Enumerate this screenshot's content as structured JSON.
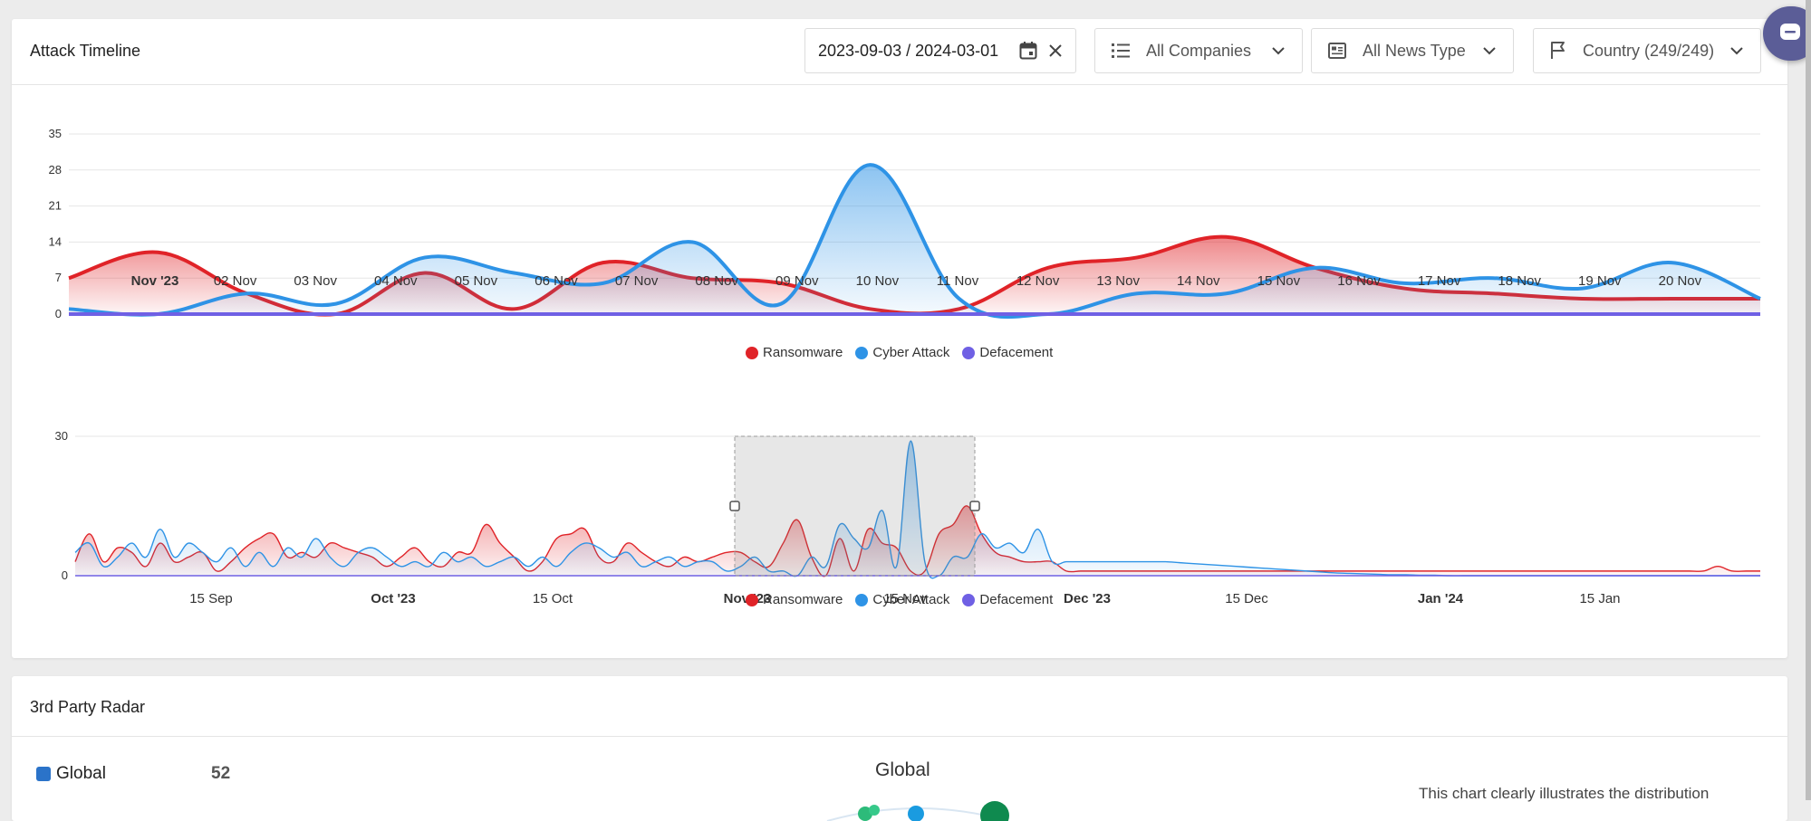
{
  "timeline": {
    "title": "Attack Timeline",
    "filters": {
      "date_range": "2023-09-03 / 2024-03-01",
      "companies": "All Companies",
      "news_type": "All News Type",
      "country": "Country (249/249)"
    },
    "icons": {
      "calendar": "calendar-icon",
      "clear": "close-icon",
      "companies": "list-icon",
      "news_type": "newspaper-icon",
      "country": "flag-icon",
      "dropdown": "chevron-down-icon",
      "chat": "chat-icon"
    },
    "legend": [
      {
        "name": "Ransomware",
        "color": "#e02328"
      },
      {
        "name": "Cyber Attack",
        "color": "#2e93e6"
      },
      {
        "name": "Defacement",
        "color": "#6f60e4"
      }
    ]
  },
  "chart_data": [
    {
      "type": "area",
      "x": [
        "Nov '23",
        "02 Nov",
        "03 Nov",
        "04 Nov",
        "05 Nov",
        "06 Nov",
        "07 Nov",
        "08 Nov",
        "09 Nov",
        "10 Nov",
        "11 Nov",
        "12 Nov",
        "13 Nov",
        "14 Nov",
        "15 Nov",
        "16 Nov",
        "17 Nov",
        "18 Nov",
        "19 Nov",
        "20 Nov"
      ],
      "yticks": [
        0,
        7,
        14,
        21,
        28,
        35
      ],
      "ylim": [
        0,
        35
      ],
      "series": [
        {
          "name": "Ransomware",
          "values": [
            7,
            12,
            4,
            0,
            8,
            1,
            10,
            7,
            6,
            1,
            1,
            9,
            11,
            15,
            9,
            5,
            4,
            3,
            3,
            3
          ]
        },
        {
          "name": "Cyber Attack",
          "values": [
            1,
            0,
            4,
            2,
            11,
            8,
            6,
            14,
            2,
            29,
            3,
            0,
            4,
            4,
            9,
            6,
            7,
            5,
            10,
            3
          ]
        },
        {
          "name": "Defacement",
          "values": [
            0,
            0,
            0,
            0,
            0,
            0,
            0,
            0,
            0,
            0,
            0,
            0,
            0,
            0,
            0,
            0,
            0,
            0,
            0,
            0
          ]
        }
      ]
    },
    {
      "type": "area",
      "x_labels": [
        "15 Sep",
        "Oct '23",
        "15 Oct",
        "Nov '23",
        "15 Nov",
        "Dec '23",
        "15 Dec",
        "Jan '24",
        "15 Jan"
      ],
      "yticks": [
        0,
        30
      ],
      "ylim": [
        0,
        30
      ],
      "selection": {
        "from": "Nov '23",
        "to": "20 Nov"
      },
      "series": [
        {
          "name": "Ransomware",
          "values": [
            3,
            9,
            3,
            6,
            5,
            2,
            7,
            3,
            4,
            5,
            1,
            3,
            6,
            8,
            9,
            4,
            5,
            4,
            7,
            6,
            5,
            4,
            2,
            4,
            6,
            3,
            2,
            5,
            5,
            11,
            7,
            4,
            1,
            3,
            8,
            9,
            10,
            4,
            3,
            7,
            5,
            3,
            2,
            4,
            3,
            4,
            5,
            5,
            3,
            2,
            7,
            12,
            4,
            0,
            8,
            1,
            10,
            7,
            6,
            1,
            1,
            9,
            11,
            15,
            9,
            5,
            4,
            3,
            3,
            3,
            1,
            1,
            1,
            1,
            1,
            1,
            1,
            1,
            1,
            1,
            1,
            1,
            1,
            1,
            1,
            1,
            1,
            1,
            1,
            1,
            1,
            1,
            1,
            1,
            1,
            1,
            1,
            1,
            1,
            1,
            1,
            1,
            1,
            1,
            1,
            1,
            1,
            1,
            1,
            1,
            1,
            1,
            1,
            1,
            1,
            1,
            2,
            1,
            1,
            1
          ]
        },
        {
          "name": "Cyber Attack",
          "values": [
            5,
            7,
            2,
            4,
            7,
            4,
            10,
            4,
            7,
            5,
            3,
            6,
            2,
            5,
            2,
            6,
            4,
            8,
            4,
            2,
            5,
            6,
            4,
            2,
            3,
            2,
            5,
            3,
            4,
            2,
            3,
            4,
            2,
            4,
            2,
            5,
            7,
            6,
            4,
            5,
            2,
            3,
            4,
            2,
            3,
            3,
            1,
            2,
            4,
            1,
            1,
            0,
            4,
            2,
            11,
            8,
            6,
            14,
            2,
            29,
            3,
            0,
            4,
            4,
            9,
            6,
            7,
            5,
            10,
            3,
            3,
            3,
            3,
            3,
            3,
            3,
            3,
            3,
            2.8,
            2.6,
            2.4,
            2.2,
            2,
            1.8,
            1.6,
            1.4,
            1.2,
            1,
            0.8,
            0.6,
            0.5,
            0.4,
            0.3,
            0.2,
            0.2,
            0.1,
            0.1,
            0,
            0,
            0,
            0,
            0,
            0,
            0,
            0,
            0,
            0,
            0,
            0,
            0,
            0,
            0,
            0,
            0,
            0,
            0,
            0,
            0,
            0,
            0
          ]
        },
        {
          "name": "Defacement",
          "values": [
            0,
            0,
            0,
            0,
            0,
            0,
            0,
            0,
            0,
            0,
            0,
            0,
            0,
            0,
            0,
            0,
            0,
            0,
            0,
            0,
            0,
            0,
            0,
            0,
            0,
            0,
            0,
            0,
            0,
            0,
            0,
            0,
            0,
            0,
            0,
            0,
            0,
            0,
            0,
            0,
            0,
            0,
            0,
            0,
            0,
            0,
            0,
            0,
            0,
            0,
            0,
            0,
            0,
            0,
            0,
            0,
            0,
            0,
            0,
            0,
            0,
            0,
            0,
            0,
            0,
            0,
            0,
            0,
            0,
            0,
            0,
            0,
            0,
            0,
            0,
            0,
            0,
            0,
            0,
            0,
            0,
            0,
            0,
            0,
            0,
            0,
            0,
            0,
            0,
            0,
            0,
            0,
            0,
            0,
            0,
            0,
            0,
            0,
            0,
            0,
            0,
            0,
            0,
            0,
            0,
            0,
            0,
            0,
            0,
            0,
            0,
            0,
            0,
            0,
            0,
            0,
            0,
            0,
            0,
            0
          ]
        }
      ]
    }
  ],
  "radar": {
    "title": "3rd Party Radar",
    "legend_label": "Global",
    "legend_value": "52",
    "chart_title": "Global",
    "description": "This chart clearly illustrates the distribution"
  }
}
